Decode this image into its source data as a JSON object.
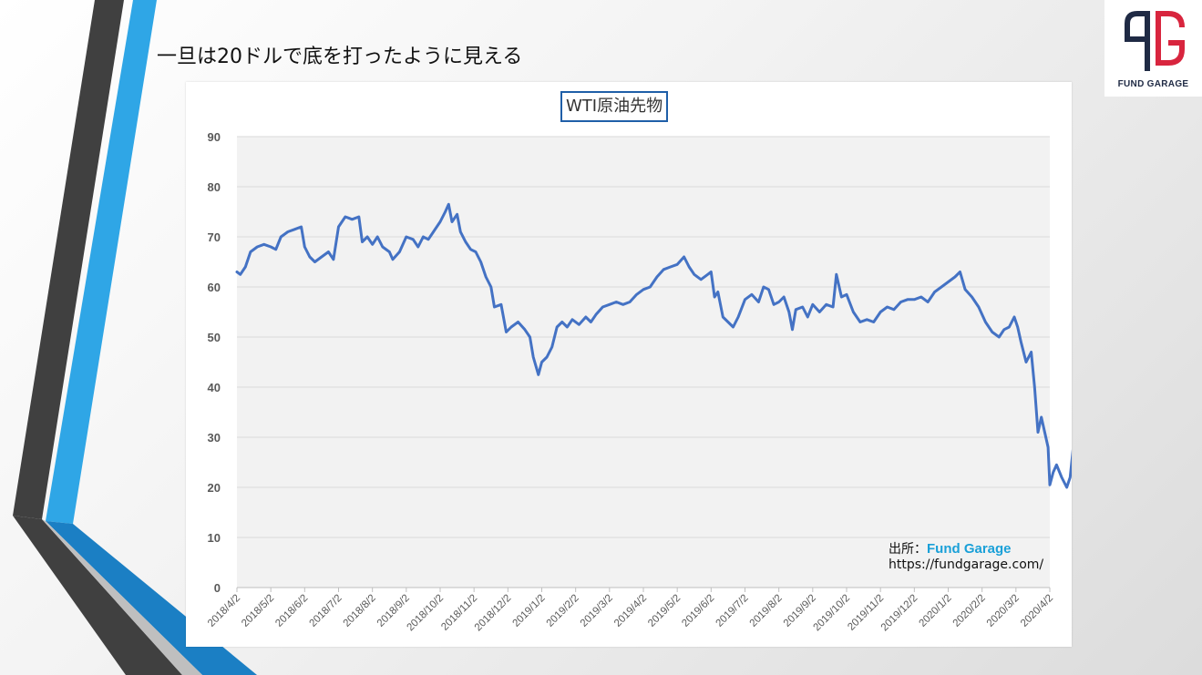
{
  "slide": {
    "title": "一旦は20ドルで底を打ったように見える"
  },
  "logo": {
    "mark": "FG",
    "text": "FUND GARAGE",
    "colors": {
      "navy": "#1f2a44",
      "red": "#d8253e"
    }
  },
  "source": {
    "label": "出所：",
    "brand": "Fund Garage",
    "url": "https://fundgarage.com/"
  },
  "colors": {
    "line": "#4472c4",
    "plot_bg": "#f2f2f2",
    "accent_blue": "#2fa6e6",
    "dark_stripe": "#404040"
  },
  "chart_data": {
    "type": "line",
    "title": "WTI原油先物",
    "xlabel": "",
    "ylabel": "",
    "ylim": [
      0,
      90
    ],
    "yticks": [
      0,
      10,
      20,
      30,
      40,
      50,
      60,
      70,
      80,
      90
    ],
    "grid": true,
    "categories": [
      "2018/4/2",
      "2018/5/2",
      "2018/6/2",
      "2018/7/2",
      "2018/8/2",
      "2018/9/2",
      "2018/10/2",
      "2018/11/2",
      "2018/12/2",
      "2019/1/2",
      "2019/2/2",
      "2019/3/2",
      "2019/4/2",
      "2019/5/2",
      "2019/6/2",
      "2019/7/2",
      "2019/8/2",
      "2019/9/2",
      "2019/10/2",
      "2019/11/2",
      "2019/12/2",
      "2020/1/2",
      "2020/2/2",
      "2020/3/2",
      "2020/4/2"
    ],
    "series": [
      {
        "values": [
          [
            0,
            63
          ],
          [
            0.1,
            62.5
          ],
          [
            0.25,
            64
          ],
          [
            0.4,
            67
          ],
          [
            0.6,
            68
          ],
          [
            0.8,
            68.5
          ],
          [
            1.0,
            68
          ],
          [
            1.15,
            67.5
          ],
          [
            1.3,
            70
          ],
          [
            1.5,
            71
          ],
          [
            1.7,
            71.5
          ],
          [
            1.9,
            72
          ],
          [
            2.0,
            68
          ],
          [
            2.15,
            66
          ],
          [
            2.3,
            65
          ],
          [
            2.5,
            66
          ],
          [
            2.7,
            67
          ],
          [
            2.85,
            65.5
          ],
          [
            3.0,
            72
          ],
          [
            3.2,
            74
          ],
          [
            3.4,
            73.5
          ],
          [
            3.6,
            74
          ],
          [
            3.7,
            69
          ],
          [
            3.85,
            70
          ],
          [
            4.0,
            68.5
          ],
          [
            4.15,
            70
          ],
          [
            4.3,
            68
          ],
          [
            4.5,
            67
          ],
          [
            4.6,
            65.5
          ],
          [
            4.8,
            67
          ],
          [
            5.0,
            70
          ],
          [
            5.2,
            69.5
          ],
          [
            5.35,
            68
          ],
          [
            5.5,
            70
          ],
          [
            5.65,
            69.5
          ],
          [
            5.8,
            71
          ],
          [
            6.0,
            73
          ],
          [
            6.15,
            75
          ],
          [
            6.25,
            76.5
          ],
          [
            6.35,
            73
          ],
          [
            6.5,
            74.5
          ],
          [
            6.6,
            71
          ],
          [
            6.75,
            69
          ],
          [
            6.9,
            67.5
          ],
          [
            7.05,
            67
          ],
          [
            7.2,
            65
          ],
          [
            7.35,
            62
          ],
          [
            7.5,
            60
          ],
          [
            7.6,
            56
          ],
          [
            7.8,
            56.5
          ],
          [
            7.95,
            51
          ],
          [
            8.1,
            52
          ],
          [
            8.3,
            53
          ],
          [
            8.5,
            51.5
          ],
          [
            8.65,
            50
          ],
          [
            8.75,
            46
          ],
          [
            8.9,
            42.5
          ],
          [
            9.0,
            45
          ],
          [
            9.15,
            46
          ],
          [
            9.3,
            48
          ],
          [
            9.45,
            52
          ],
          [
            9.6,
            53
          ],
          [
            9.75,
            52
          ],
          [
            9.9,
            53.5
          ],
          [
            10.1,
            52.5
          ],
          [
            10.3,
            54
          ],
          [
            10.45,
            53
          ],
          [
            10.6,
            54.5
          ],
          [
            10.8,
            56
          ],
          [
            11.0,
            56.5
          ],
          [
            11.2,
            57
          ],
          [
            11.4,
            56.5
          ],
          [
            11.6,
            57
          ],
          [
            11.8,
            58.5
          ],
          [
            12.0,
            59.5
          ],
          [
            12.2,
            60
          ],
          [
            12.4,
            62
          ],
          [
            12.6,
            63.5
          ],
          [
            12.8,
            64
          ],
          [
            13.0,
            64.5
          ],
          [
            13.2,
            66
          ],
          [
            13.35,
            64
          ],
          [
            13.5,
            62.5
          ],
          [
            13.7,
            61.5
          ],
          [
            13.9,
            62.5
          ],
          [
            14.0,
            63
          ],
          [
            14.1,
            58
          ],
          [
            14.2,
            59
          ],
          [
            14.35,
            54
          ],
          [
            14.5,
            53
          ],
          [
            14.65,
            52
          ],
          [
            14.8,
            54
          ],
          [
            15.0,
            57.5
          ],
          [
            15.2,
            58.5
          ],
          [
            15.4,
            57
          ],
          [
            15.55,
            60
          ],
          [
            15.7,
            59.5
          ],
          [
            15.85,
            56.5
          ],
          [
            16.0,
            57
          ],
          [
            16.15,
            58
          ],
          [
            16.3,
            55
          ],
          [
            16.4,
            51.5
          ],
          [
            16.5,
            55.5
          ],
          [
            16.7,
            56
          ],
          [
            16.85,
            54
          ],
          [
            17.0,
            56.5
          ],
          [
            17.2,
            55
          ],
          [
            17.4,
            56.5
          ],
          [
            17.6,
            56
          ],
          [
            17.7,
            62.5
          ],
          [
            17.85,
            58
          ],
          [
            18.0,
            58.5
          ],
          [
            18.2,
            55
          ],
          [
            18.4,
            53
          ],
          [
            18.6,
            53.5
          ],
          [
            18.8,
            53
          ],
          [
            19.0,
            55
          ],
          [
            19.2,
            56
          ],
          [
            19.4,
            55.5
          ],
          [
            19.6,
            57
          ],
          [
            19.8,
            57.5
          ],
          [
            20.0,
            57.5
          ],
          [
            20.2,
            58
          ],
          [
            20.4,
            57
          ],
          [
            20.6,
            59
          ],
          [
            20.8,
            60
          ],
          [
            21.0,
            61
          ],
          [
            21.2,
            62
          ],
          [
            21.35,
            63
          ],
          [
            21.5,
            59.5
          ],
          [
            21.7,
            58
          ],
          [
            21.9,
            56
          ],
          [
            22.1,
            53
          ],
          [
            22.3,
            51
          ],
          [
            22.5,
            50
          ],
          [
            22.65,
            51.5
          ],
          [
            22.8,
            52
          ],
          [
            22.95,
            54
          ],
          [
            23.05,
            52
          ],
          [
            23.15,
            49
          ],
          [
            23.3,
            45
          ],
          [
            23.45,
            47
          ],
          [
            23.55,
            40
          ],
          [
            23.65,
            31
          ],
          [
            23.75,
            34
          ],
          [
            23.85,
            31
          ],
          [
            23.95,
            28
          ],
          [
            24.0,
            20.5
          ],
          [
            24.1,
            23
          ],
          [
            24.2,
            24.5
          ],
          [
            24.35,
            22
          ],
          [
            24.5,
            20
          ],
          [
            24.6,
            22
          ],
          [
            24.7,
            28.5
          ],
          [
            24.8,
            26
          ],
          [
            24.85,
            24
          ]
        ]
      }
    ]
  }
}
